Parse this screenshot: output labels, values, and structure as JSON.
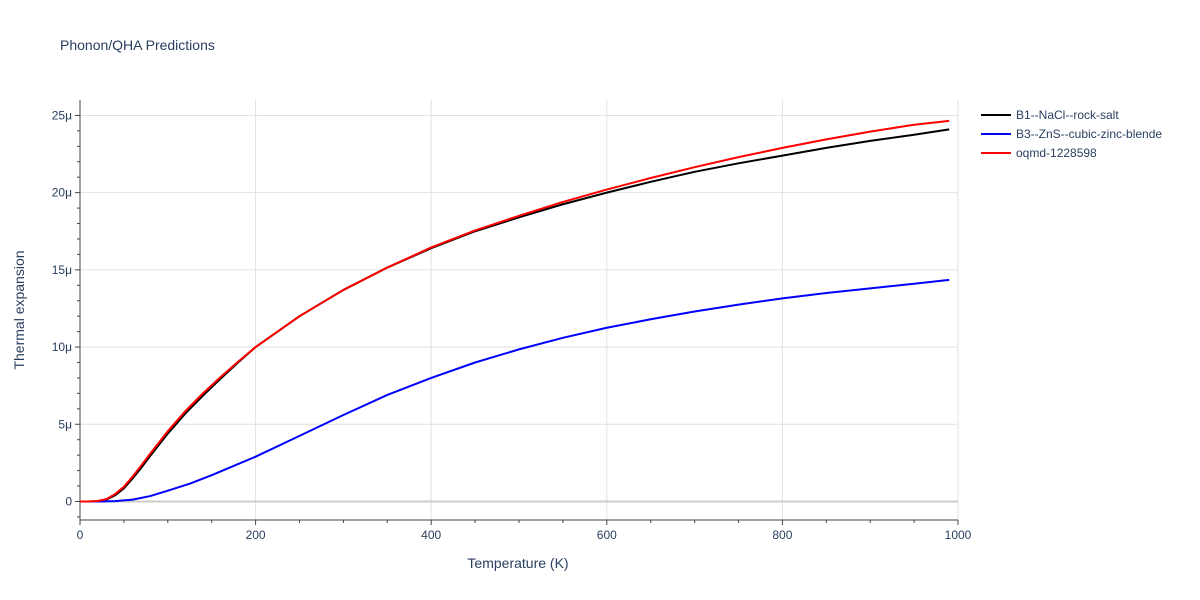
{
  "chart_data": {
    "type": "line",
    "title": "Phonon/QHA Predictions",
    "xlabel": "Temperature (K)",
    "ylabel": "Thermal expansion",
    "xlim": [
      0,
      1000
    ],
    "ylim": [
      -1.2,
      26
    ],
    "x_ticks": [
      0,
      200,
      400,
      600,
      800,
      1000
    ],
    "x_tick_labels": [
      "0",
      "200",
      "400",
      "600",
      "800",
      "1000"
    ],
    "y_ticks": [
      0,
      5,
      10,
      15,
      20,
      25
    ],
    "y_tick_labels": [
      "0",
      "5μ",
      "10μ",
      "15μ",
      "20μ",
      "25μ"
    ],
    "grid": true,
    "legend_position": "top-right",
    "series": [
      {
        "name": "B1--NaCl--rock-salt",
        "color": "#000000",
        "x": [
          0,
          10,
          20,
          30,
          40,
          50,
          60,
          70,
          80,
          100,
          120,
          140,
          160,
          180,
          200,
          250,
          300,
          350,
          400,
          450,
          500,
          550,
          600,
          650,
          700,
          750,
          800,
          850,
          900,
          950,
          990
        ],
        "y": [
          0,
          0,
          0.02,
          0.12,
          0.4,
          0.85,
          1.5,
          2.2,
          2.95,
          4.4,
          5.7,
          6.85,
          7.95,
          9.0,
          10.0,
          12.0,
          13.7,
          15.15,
          16.4,
          17.5,
          18.4,
          19.25,
          20.0,
          20.7,
          21.35,
          21.9,
          22.4,
          22.9,
          23.35,
          23.75,
          24.1
        ]
      },
      {
        "name": "B3--ZnS--cubic-zinc-blende",
        "color": "#0000ff",
        "x": [
          0,
          20,
          40,
          60,
          80,
          100,
          125,
          150,
          175,
          200,
          250,
          300,
          350,
          400,
          450,
          500,
          550,
          600,
          650,
          700,
          750,
          800,
          850,
          900,
          950,
          990
        ],
        "y": [
          0,
          0,
          0.02,
          0.12,
          0.35,
          0.7,
          1.15,
          1.7,
          2.3,
          2.9,
          4.25,
          5.6,
          6.9,
          8.0,
          9.0,
          9.85,
          10.6,
          11.25,
          11.8,
          12.3,
          12.75,
          13.15,
          13.5,
          13.8,
          14.1,
          14.35
        ]
      },
      {
        "name": "oqmd-1228598",
        "color": "#ff0000",
        "x": [
          0,
          10,
          20,
          30,
          40,
          50,
          60,
          70,
          80,
          100,
          120,
          140,
          160,
          180,
          200,
          250,
          300,
          350,
          400,
          450,
          500,
          550,
          600,
          650,
          700,
          750,
          800,
          850,
          900,
          950,
          990
        ],
        "y": [
          0,
          0,
          0.03,
          0.15,
          0.48,
          0.95,
          1.62,
          2.35,
          3.1,
          4.55,
          5.85,
          7.0,
          8.05,
          9.05,
          10.0,
          12.0,
          13.7,
          15.15,
          16.45,
          17.55,
          18.5,
          19.4,
          20.2,
          20.95,
          21.65,
          22.3,
          22.9,
          23.45,
          23.95,
          24.4,
          24.65
        ]
      }
    ]
  }
}
